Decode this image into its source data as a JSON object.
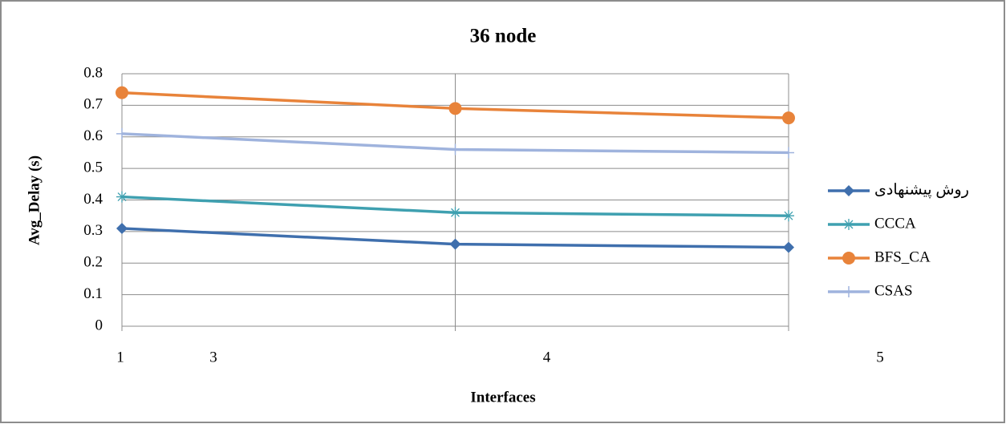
{
  "chart_data": {
    "type": "line",
    "title": "36 node",
    "x_label": "Interfaces",
    "y_label": "Avg_Delay (s)",
    "x_origin_label": "1",
    "categories": [
      "3",
      "4",
      "5"
    ],
    "series": [
      {
        "name": "روش پیشنهادی",
        "color": "#3f6fad",
        "marker": "diamond",
        "values": [
          0.31,
          0.26,
          0.25
        ]
      },
      {
        "name": "CCCA",
        "color": "#3fa0b0",
        "marker": "asterisk",
        "values": [
          0.41,
          0.36,
          0.35
        ]
      },
      {
        "name": "BFS_CA",
        "color": "#e8833a",
        "marker": "circle",
        "values": [
          0.74,
          0.69,
          0.66
        ]
      },
      {
        "name": "CSAS",
        "color": "#9fb3dd",
        "marker": "plus",
        "values": [
          0.61,
          0.56,
          0.55
        ]
      }
    ],
    "ylim": [
      0,
      0.8
    ],
    "yticks": [
      0,
      0.1,
      0.2,
      0.3,
      0.4,
      0.5,
      0.6,
      0.7,
      0.8
    ],
    "grid": true,
    "legend": "right"
  }
}
